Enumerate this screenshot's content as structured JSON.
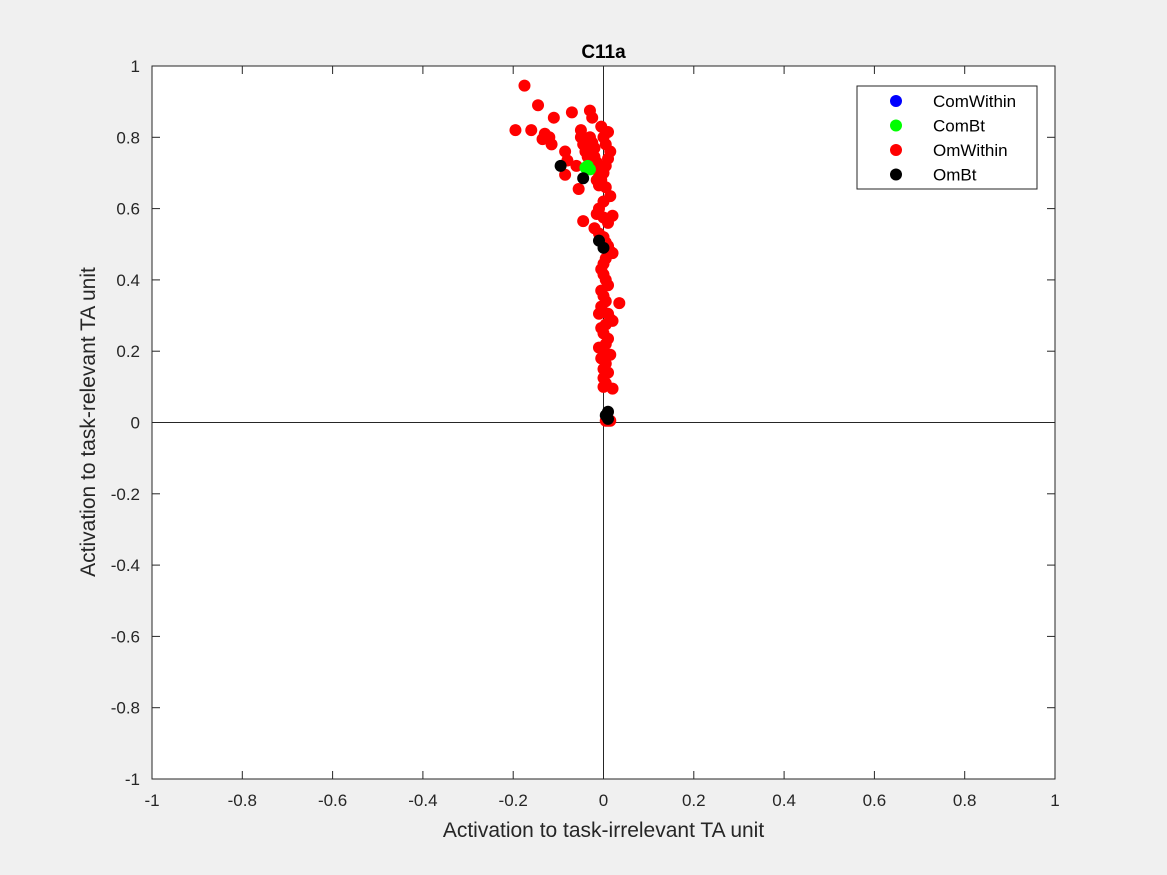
{
  "chart_data": {
    "type": "scatter",
    "title": "C11a",
    "xlabel": "Activation to task-irrelevant TA unit",
    "ylabel": "Activation to task-relevant TA unit",
    "xlim": [
      -1,
      1
    ],
    "ylim": [
      -1,
      1
    ],
    "xticks": [
      "-1",
      "-0.8",
      "-0.6",
      "-0.4",
      "-0.2",
      "0",
      "0.2",
      "0.4",
      "0.6",
      "0.8",
      "1"
    ],
    "yticks": [
      "-1",
      "-0.8",
      "-0.6",
      "-0.4",
      "-0.2",
      "0",
      "0.2",
      "0.4",
      "0.6",
      "0.8",
      "1"
    ],
    "grid": false,
    "reference_lines": [
      "x=0",
      "y=0"
    ],
    "legend_position": "top-right",
    "series": [
      {
        "name": "ComWithin",
        "color": "#0000ff",
        "points": []
      },
      {
        "name": "ComBt",
        "color": "#00ff00",
        "points": [
          [
            -0.04,
            0.715
          ],
          [
            -0.035,
            0.72
          ],
          [
            -0.03,
            0.71
          ]
        ]
      },
      {
        "name": "OmWithin",
        "color": "#ff0000",
        "points": [
          [
            -0.175,
            0.945
          ],
          [
            -0.195,
            0.82
          ],
          [
            -0.16,
            0.82
          ],
          [
            -0.145,
            0.89
          ],
          [
            -0.13,
            0.81
          ],
          [
            -0.135,
            0.795
          ],
          [
            -0.12,
            0.8
          ],
          [
            -0.11,
            0.855
          ],
          [
            -0.115,
            0.78
          ],
          [
            -0.085,
            0.76
          ],
          [
            -0.08,
            0.735
          ],
          [
            -0.085,
            0.695
          ],
          [
            -0.07,
            0.87
          ],
          [
            -0.06,
            0.72
          ],
          [
            -0.055,
            0.655
          ],
          [
            -0.05,
            0.82
          ],
          [
            -0.05,
            0.8
          ],
          [
            -0.045,
            0.78
          ],
          [
            -0.045,
            0.565
          ],
          [
            -0.04,
            0.76
          ],
          [
            -0.035,
            0.745
          ],
          [
            -0.03,
            0.875
          ],
          [
            -0.025,
            0.855
          ],
          [
            -0.03,
            0.8
          ],
          [
            -0.025,
            0.785
          ],
          [
            -0.02,
            0.77
          ],
          [
            -0.02,
            0.745
          ],
          [
            -0.015,
            0.73
          ],
          [
            -0.01,
            0.7
          ],
          [
            -0.015,
            0.68
          ],
          [
            -0.01,
            0.665
          ],
          [
            -0.005,
            0.83
          ],
          [
            0.0,
            0.8
          ],
          [
            0.005,
            0.78
          ],
          [
            0.01,
            0.815
          ],
          [
            0.015,
            0.76
          ],
          [
            0.01,
            0.74
          ],
          [
            0.005,
            0.72
          ],
          [
            0.0,
            0.7
          ],
          [
            -0.005,
            0.68
          ],
          [
            0.005,
            0.66
          ],
          [
            0.015,
            0.635
          ],
          [
            0.0,
            0.62
          ],
          [
            -0.01,
            0.6
          ],
          [
            -0.015,
            0.585
          ],
          [
            0.0,
            0.575
          ],
          [
            0.01,
            0.56
          ],
          [
            0.02,
            0.58
          ],
          [
            -0.02,
            0.545
          ],
          [
            -0.01,
            0.53
          ],
          [
            0.0,
            0.52
          ],
          [
            0.005,
            0.505
          ],
          [
            0.01,
            0.495
          ],
          [
            0.015,
            0.48
          ],
          [
            0.02,
            0.475
          ],
          [
            0.005,
            0.46
          ],
          [
            0.0,
            0.445
          ],
          [
            -0.005,
            0.43
          ],
          [
            0.0,
            0.415
          ],
          [
            0.005,
            0.4
          ],
          [
            0.01,
            0.385
          ],
          [
            -0.005,
            0.37
          ],
          [
            0.0,
            0.355
          ],
          [
            0.005,
            0.34
          ],
          [
            0.035,
            0.335
          ],
          [
            -0.005,
            0.325
          ],
          [
            0.0,
            0.31
          ],
          [
            0.01,
            0.305
          ],
          [
            -0.01,
            0.305
          ],
          [
            0.015,
            0.29
          ],
          [
            0.02,
            0.285
          ],
          [
            0.005,
            0.275
          ],
          [
            -0.005,
            0.265
          ],
          [
            0.0,
            0.25
          ],
          [
            0.01,
            0.235
          ],
          [
            0.005,
            0.22
          ],
          [
            -0.01,
            0.21
          ],
          [
            0.0,
            0.2
          ],
          [
            0.015,
            0.19
          ],
          [
            -0.005,
            0.18
          ],
          [
            0.005,
            0.165
          ],
          [
            0.0,
            0.15
          ],
          [
            0.01,
            0.14
          ],
          [
            0.0,
            0.125
          ],
          [
            0.005,
            0.11
          ],
          [
            0.0,
            0.1
          ],
          [
            0.02,
            0.095
          ],
          [
            0.005,
            0.005
          ],
          [
            0.01,
            0.005
          ],
          [
            0.015,
            0.005
          ]
        ]
      },
      {
        "name": "OmBt",
        "color": "#000000",
        "points": [
          [
            -0.095,
            0.72
          ],
          [
            -0.045,
            0.685
          ],
          [
            -0.01,
            0.51
          ],
          [
            0.0,
            0.49
          ],
          [
            0.005,
            0.02
          ],
          [
            0.01,
            0.03
          ],
          [
            0.01,
            0.01
          ]
        ]
      }
    ]
  }
}
